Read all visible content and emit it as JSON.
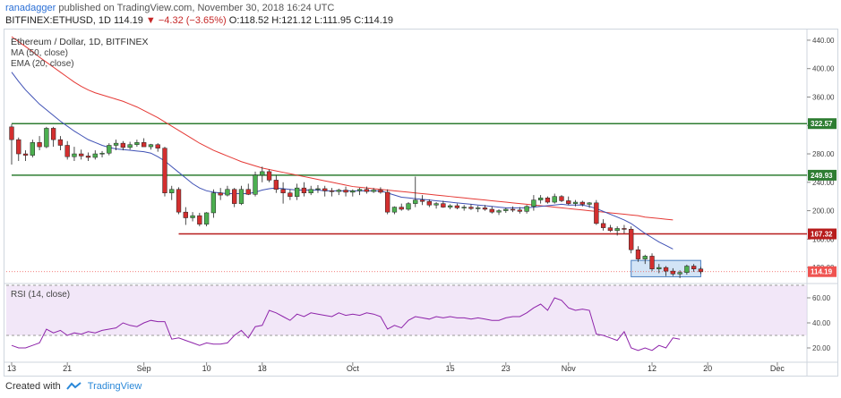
{
  "header": {
    "author": "ranadagger",
    "published_text": "published on TradingView.com, November 30, 2018 16:24 UTC",
    "symbol": "BITFINEX:ETHUSD, 1D",
    "last": "114.19",
    "change": "▼ −4.32 (−3.65%)",
    "ohlc": "O:118.52 H:121.12 L:111.95 C:114.19"
  },
  "legend": {
    "title": "Ethereum / Dollar, 1D, BITFINEX",
    "ma": "MA (50, close)",
    "ema": "EMA (20, close)",
    "rsi": "RSI (14, close)"
  },
  "footer": {
    "created_with": "Created with",
    "brand": "TradingView"
  },
  "colors": {
    "up": "#4caf50",
    "down": "#d32f2f",
    "ma": "#e53935",
    "ema": "#3f51b5",
    "support_green": "#2e7d32",
    "support_red": "#b71c1c",
    "rsi": "#8e24aa",
    "box": "#9ec3ea",
    "last_tag": "#ef5350"
  },
  "chart_data": {
    "type": "candlestick",
    "title": "Ethereum / Dollar, 1D, BITFINEX",
    "ylim": [
      100,
      450
    ],
    "y_ticks": [
      440,
      400,
      360,
      320,
      280,
      240,
      200,
      160,
      120
    ],
    "x_tick_labels": [
      "13",
      "21",
      "Sep",
      "10",
      "18",
      "Oct",
      "15",
      "23",
      "Nov",
      "12",
      "20",
      "Dec"
    ],
    "x_tick_days": [
      0,
      8,
      19,
      28,
      36,
      49,
      63,
      71,
      80,
      92,
      100,
      110
    ],
    "candles": [
      [
        318,
        322,
        265,
        300
      ],
      [
        300,
        303,
        270,
        280
      ],
      [
        280,
        285,
        270,
        278
      ],
      [
        278,
        300,
        275,
        296
      ],
      [
        296,
        305,
        285,
        290
      ],
      [
        290,
        318,
        288,
        316
      ],
      [
        316,
        318,
        290,
        300
      ],
      [
        300,
        305,
        285,
        292
      ],
      [
        292,
        298,
        272,
        276
      ],
      [
        276,
        290,
        270,
        280
      ],
      [
        280,
        286,
        272,
        277
      ],
      [
        277,
        282,
        270,
        275
      ],
      [
        275,
        285,
        272,
        280
      ],
      [
        280,
        284,
        275,
        281
      ],
      [
        281,
        295,
        278,
        292
      ],
      [
        292,
        300,
        285,
        295
      ],
      [
        295,
        298,
        285,
        289
      ],
      [
        289,
        297,
        286,
        293
      ],
      [
        293,
        300,
        290,
        296
      ],
      [
        296,
        302,
        292,
        290
      ],
      [
        290,
        294,
        286,
        293
      ],
      [
        293,
        295,
        283,
        288
      ],
      [
        288,
        290,
        220,
        225
      ],
      [
        225,
        235,
        215,
        230
      ],
      [
        230,
        233,
        195,
        198
      ],
      [
        198,
        205,
        180,
        190
      ],
      [
        190,
        198,
        185,
        193
      ],
      [
        193,
        197,
        178,
        181
      ],
      [
        181,
        198,
        178,
        197
      ],
      [
        197,
        230,
        190,
        225
      ],
      [
        225,
        232,
        215,
        222
      ],
      [
        222,
        235,
        220,
        230
      ],
      [
        230,
        232,
        205,
        210
      ],
      [
        210,
        235,
        208,
        230
      ],
      [
        230,
        238,
        222,
        223
      ],
      [
        223,
        255,
        220,
        250
      ],
      [
        250,
        262,
        240,
        255
      ],
      [
        255,
        258,
        240,
        243
      ],
      [
        243,
        250,
        225,
        230
      ],
      [
        230,
        240,
        210,
        225
      ],
      [
        225,
        230,
        215,
        220
      ],
      [
        220,
        238,
        215,
        232
      ],
      [
        232,
        240,
        220,
        225
      ],
      [
        225,
        235,
        222,
        230
      ],
      [
        230,
        236,
        225,
        231
      ],
      [
        231,
        235,
        220,
        228
      ],
      [
        228,
        232,
        220,
        227
      ],
      [
        227,
        231,
        222,
        229
      ],
      [
        229,
        234,
        220,
        226
      ],
      [
        226,
        230,
        220,
        228
      ],
      [
        228,
        232,
        222,
        230
      ],
      [
        230,
        234,
        224,
        227
      ],
      [
        227,
        232,
        225,
        229
      ],
      [
        229,
        233,
        224,
        226
      ],
      [
        226,
        230,
        195,
        198
      ],
      [
        198,
        206,
        195,
        205
      ],
      [
        205,
        210,
        200,
        202
      ],
      [
        202,
        212,
        200,
        210
      ],
      [
        210,
        248,
        205,
        215
      ],
      [
        215,
        222,
        208,
        213
      ],
      [
        213,
        216,
        205,
        208
      ],
      [
        208,
        212,
        203,
        210
      ],
      [
        210,
        214,
        204,
        205
      ],
      [
        205,
        209,
        202,
        207
      ],
      [
        207,
        210,
        202,
        204
      ],
      [
        204,
        208,
        200,
        205
      ],
      [
        205,
        209,
        201,
        203
      ],
      [
        203,
        207,
        198,
        204
      ],
      [
        204,
        208,
        200,
        202
      ],
      [
        202,
        206,
        196,
        198
      ],
      [
        198,
        202,
        194,
        200
      ],
      [
        200,
        204,
        197,
        202
      ],
      [
        202,
        206,
        198,
        201
      ],
      [
        201,
        205,
        196,
        199
      ],
      [
        199,
        208,
        196,
        206
      ],
      [
        206,
        222,
        200,
        215
      ],
      [
        215,
        222,
        210,
        218
      ],
      [
        218,
        220,
        210,
        212
      ],
      [
        212,
        224,
        210,
        220
      ],
      [
        220,
        222,
        212,
        214
      ],
      [
        214,
        220,
        208,
        210
      ],
      [
        210,
        215,
        206,
        212
      ],
      [
        212,
        214,
        206,
        209
      ],
      [
        209,
        212,
        204,
        211
      ],
      [
        211,
        215,
        180,
        182
      ],
      [
        182,
        188,
        172,
        176
      ],
      [
        176,
        180,
        170,
        172
      ],
      [
        172,
        178,
        165,
        175
      ],
      [
        175,
        180,
        168,
        174
      ],
      [
        174,
        178,
        140,
        145
      ],
      [
        145,
        150,
        128,
        132
      ],
      [
        132,
        138,
        125,
        136
      ],
      [
        136,
        140,
        115,
        118
      ],
      [
        118,
        125,
        112,
        120
      ],
      [
        120,
        122,
        108,
        115
      ],
      [
        115,
        119,
        108,
        111
      ],
      [
        111,
        116,
        105,
        113
      ],
      [
        113,
        124,
        110,
        122
      ],
      [
        122,
        125,
        114,
        118
      ],
      [
        118,
        121,
        111,
        114
      ]
    ],
    "series": [
      {
        "name": "MA (50, close)",
        "x_start": 0,
        "values": [
          445,
          438,
          431,
          424,
          416,
          409,
          402,
          395,
          388,
          381,
          375,
          370,
          366,
          363,
          360,
          357,
          354,
          350,
          346,
          341,
          336,
          331,
          325,
          319,
          313,
          307,
          301,
          295,
          290,
          285,
          281,
          277,
          273,
          269,
          266,
          263,
          260,
          258,
          256,
          254,
          252,
          250,
          248,
          246,
          244,
          242,
          240,
          238,
          236,
          234,
          233,
          232,
          231,
          230,
          229,
          228,
          227,
          226,
          225,
          224,
          223,
          222,
          221,
          220,
          219,
          218,
          217,
          216,
          215,
          214,
          213,
          212,
          211,
          210,
          209,
          208,
          207,
          206,
          205,
          204,
          203,
          202,
          201,
          200,
          199,
          198,
          197,
          196,
          195,
          194,
          193,
          191,
          190,
          189,
          188,
          187
        ]
      },
      {
        "name": "EMA (20, close)",
        "x_start": 0,
        "values": [
          395,
          382,
          370,
          360,
          350,
          342,
          334,
          326,
          319,
          312,
          306,
          300,
          296,
          292,
          289,
          287,
          286,
          285,
          284,
          283,
          281,
          276,
          270,
          262,
          254,
          246,
          238,
          232,
          228,
          226,
          225,
          224,
          224,
          224,
          224,
          226,
          229,
          231,
          232,
          231,
          230,
          229,
          229,
          229,
          229,
          228,
          228,
          228,
          228,
          228,
          228,
          228,
          228,
          228,
          225,
          222,
          219,
          218,
          217,
          216,
          215,
          214,
          213,
          212,
          211,
          210,
          209,
          208,
          207,
          206,
          205,
          204,
          204,
          204,
          204,
          205,
          206,
          207,
          208,
          209,
          208,
          208,
          208,
          206,
          203,
          199,
          195,
          191,
          187,
          182,
          175,
          168,
          162,
          156,
          151,
          146
        ]
      }
    ],
    "levels": [
      {
        "value": 322.57,
        "label": "322.57",
        "from_day": 0,
        "color": "green"
      },
      {
        "value": 249.93,
        "label": "249.93",
        "from_day": 0,
        "color": "green"
      },
      {
        "value": 167.32,
        "label": "167.32",
        "from_day": 24,
        "color": "red"
      }
    ],
    "last_price": {
      "value": 114.19,
      "label": "114.19"
    },
    "range_box": {
      "from_day": 89,
      "to_day": 99,
      "low": 107,
      "high": 130
    },
    "rsi": {
      "ylim": [
        10,
        70
      ],
      "y_ticks": [
        60,
        40,
        20
      ],
      "overbought": 70,
      "oversold": 30,
      "values": [
        22,
        20,
        20,
        22,
        24,
        35,
        32,
        34,
        30,
        32,
        31,
        33,
        32,
        34,
        35,
        36,
        40,
        38,
        37,
        40,
        42,
        41,
        41,
        27,
        28,
        26,
        24,
        22,
        24,
        23,
        23,
        24,
        30,
        34,
        28,
        37,
        38,
        50,
        48,
        45,
        42,
        47,
        45,
        48,
        47,
        46,
        45,
        48,
        46,
        47,
        46,
        48,
        47,
        45,
        35,
        38,
        36,
        42,
        45,
        44,
        43,
        45,
        44,
        45,
        44,
        44,
        43,
        44,
        43,
        42,
        42,
        44,
        45,
        45,
        48,
        52,
        55,
        50,
        60,
        58,
        52,
        50,
        51,
        50,
        31,
        30,
        28,
        26,
        33,
        20,
        18,
        20,
        18,
        22,
        20,
        28,
        27
      ]
    }
  }
}
